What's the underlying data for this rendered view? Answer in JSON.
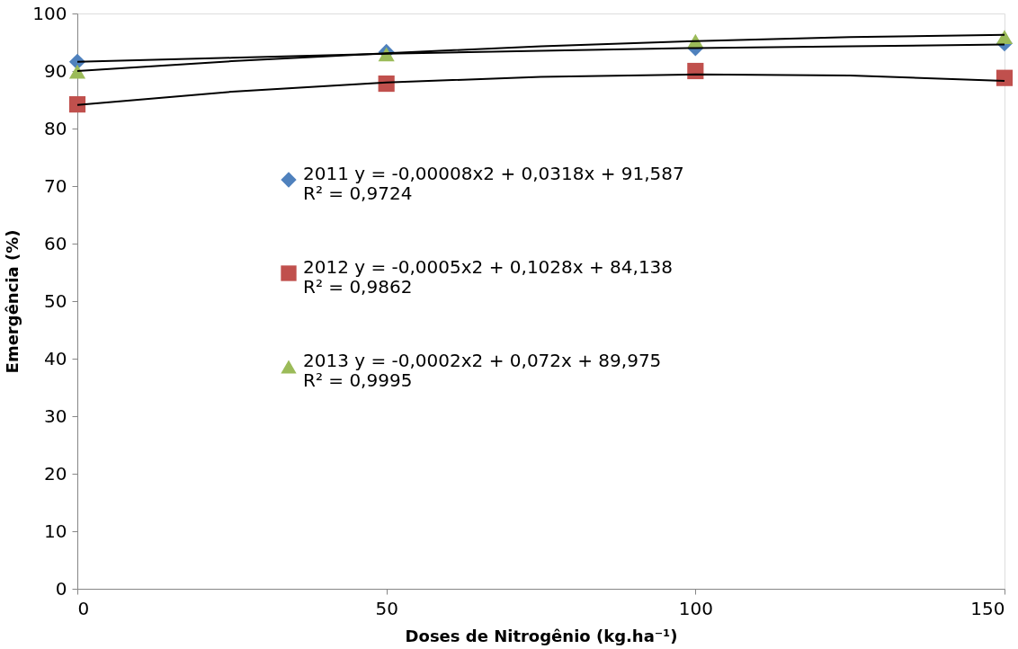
{
  "chart_data": {
    "type": "scatter",
    "xlabel": "Doses de Nitrogênio (kg.ha⁻¹)",
    "ylabel": "Emergência (%)",
    "xlim": [
      0,
      150
    ],
    "xticks": [
      0,
      50,
      100,
      150
    ],
    "ylim": [
      0,
      100
    ],
    "yticks": [
      0,
      10,
      20,
      30,
      40,
      50,
      60,
      70,
      80,
      90,
      100
    ],
    "grid": false,
    "legend": "center",
    "series": [
      {
        "name": "2011 y = -0,00008x2 + 0,0318x + 91,587\nR² = 0,9724",
        "color": "#4f81bd",
        "marker": "diamond",
        "x": [
          0,
          50,
          100,
          150
        ],
        "values": [
          91.6,
          93.3,
          94.0,
          94.8
        ]
      },
      {
        "name": "2012 y = -0,0005x2 + 0,1028x + 84,138\nR² = 0,9862",
        "color": "#c0504d",
        "marker": "square",
        "x": [
          0,
          50,
          100,
          150
        ],
        "values": [
          84.2,
          87.8,
          90.0,
          88.8
        ]
      },
      {
        "name": "2013 y = -0,0002x2 + 0,072x + 89,975\nR² = 0,9995",
        "color": "#9bbb59",
        "marker": "triangle",
        "x": [
          0,
          50,
          100,
          150
        ],
        "values": [
          89.9,
          92.9,
          95.2,
          95.9
        ]
      },
      {
        "type": "line",
        "color": "#000000",
        "x": [
          0,
          25,
          50,
          75,
          100,
          125,
          150
        ],
        "values": [
          91.6,
          92.3,
          93.0,
          93.5,
          94.0,
          94.3,
          94.6
        ]
      },
      {
        "type": "line",
        "color": "#000000",
        "x": [
          0,
          25,
          50,
          75,
          100,
          125,
          150
        ],
        "values": [
          84.1,
          86.4,
          88.0,
          89.0,
          89.4,
          89.2,
          88.3
        ]
      },
      {
        "type": "line",
        "color": "#000000",
        "x": [
          0,
          25,
          50,
          75,
          100,
          125,
          150
        ],
        "values": [
          90.0,
          91.7,
          93.1,
          94.3,
          95.2,
          95.9,
          96.3
        ]
      }
    ]
  }
}
